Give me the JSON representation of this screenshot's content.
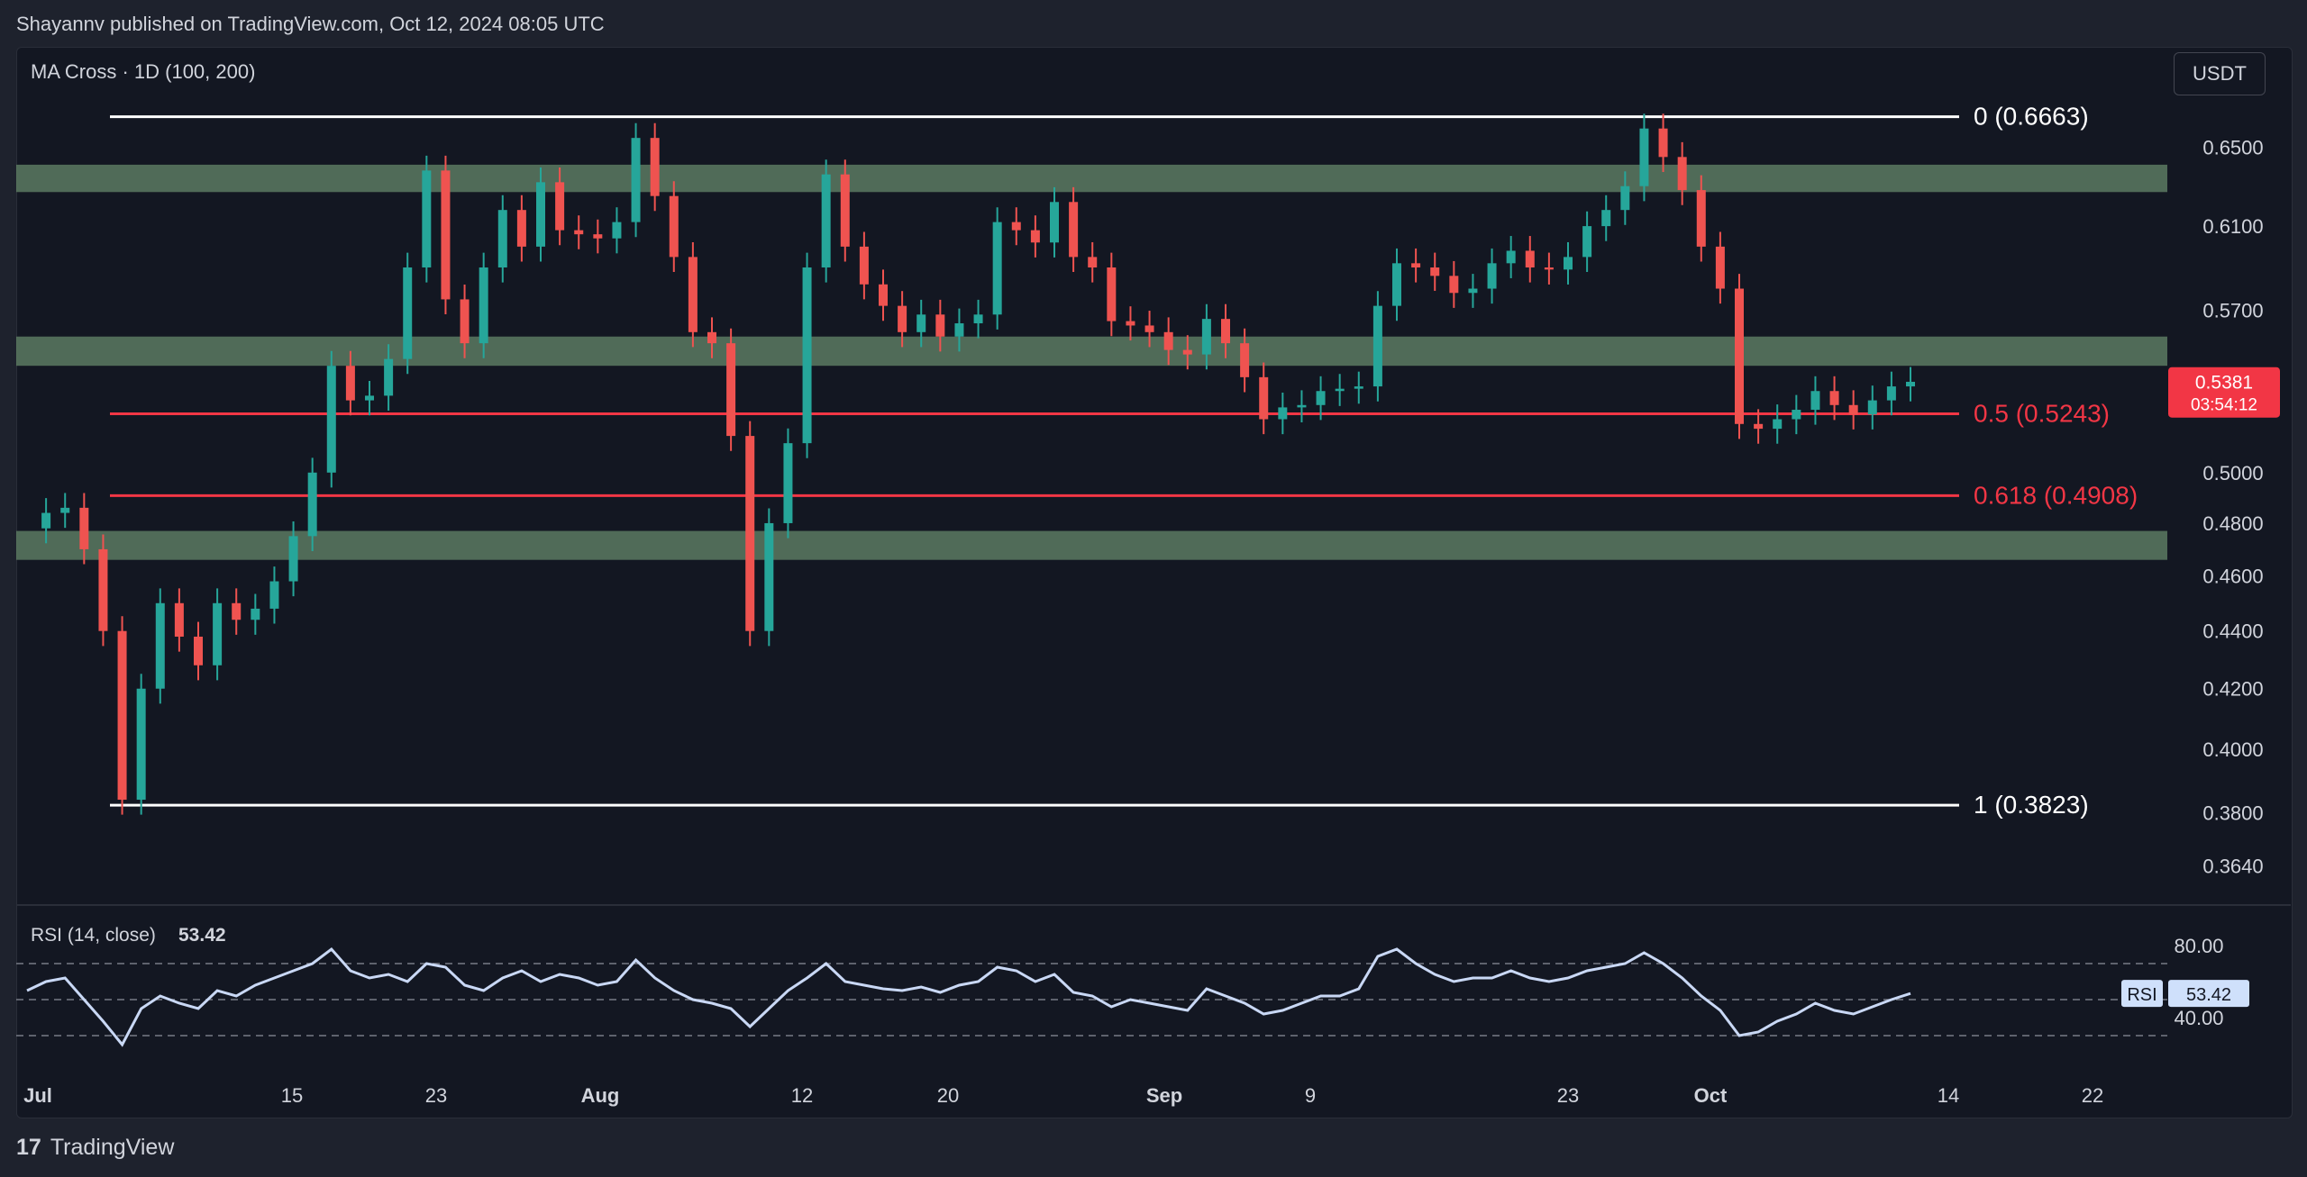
{
  "header": {
    "published": "Shayannv published on TradingView.com, Oct 12, 2024 08:05 UTC"
  },
  "footer": {
    "logo_mark": "17",
    "brand": "TradingView"
  },
  "toolbar": {
    "currency": "USDT"
  },
  "colors": {
    "up": "#26a69a",
    "down": "#ef5350",
    "zone": "#5c7a62",
    "fib_white": "#ffffff",
    "fib_red": "#f23645",
    "rsi_line": "#c9d8f5",
    "price_badge": "#f23645",
    "rsi_badge": "#cfe0fb"
  },
  "chart_data": {
    "type": "candlestick",
    "title": "MA Cross · 1D (100, 200)",
    "y_axis": {
      "range": [
        0.354,
        0.67
      ],
      "scale": "log",
      "ticks": [
        "0.6500",
        "0.6100",
        "0.5700",
        "0.5000",
        "0.4800",
        "0.4600",
        "0.4400",
        "0.4200",
        "0.4000",
        "0.3800",
        "0.3640"
      ]
    },
    "x_axis": {
      "ticks": [
        "Jul",
        "15",
        "23",
        "Aug",
        "12",
        "20",
        "Sep",
        "9",
        "23",
        "Oct",
        "14",
        "22"
      ]
    },
    "current_price": {
      "value": "0.5381",
      "countdown": "03:54:12"
    },
    "fib_levels": [
      {
        "label": "0 (0.6663)",
        "value": 0.6663,
        "color": "white"
      },
      {
        "label": "0.5 (0.5243)",
        "value": 0.5243,
        "color": "red"
      },
      {
        "label": "0.618 (0.4908)",
        "value": 0.4908,
        "color": "red"
      },
      {
        "label": "1 (0.3823)",
        "value": 0.3823,
        "color": "white"
      }
    ],
    "zones": [
      {
        "low": 0.627,
        "high": 0.641
      },
      {
        "low": 0.545,
        "high": 0.558
      },
      {
        "low": 0.466,
        "high": 0.477
      }
    ],
    "price_path": [
      [
        0.478,
        0.478
      ],
      [
        0.484,
        0.484
      ],
      [
        0.486,
        0.486
      ],
      [
        0.47,
        0.47
      ],
      [
        0.44,
        0.44
      ],
      [
        0.384,
        0.384
      ],
      [
        0.42,
        0.42
      ],
      [
        0.45,
        0.45
      ],
      [
        0.438,
        0.438
      ],
      [
        0.428,
        0.428
      ],
      [
        0.45,
        0.45
      ],
      [
        0.444,
        0.444
      ],
      [
        0.448,
        0.448
      ],
      [
        0.458,
        0.458
      ],
      [
        0.475,
        0.475
      ],
      [
        0.5,
        0.5
      ],
      [
        0.545,
        0.545
      ],
      [
        0.53,
        0.53
      ],
      [
        0.532,
        0.532
      ],
      [
        0.548,
        0.548
      ],
      [
        0.59,
        0.59
      ],
      [
        0.638,
        0.638
      ],
      [
        0.575,
        0.575
      ],
      [
        0.555,
        0.555
      ],
      [
        0.59,
        0.59
      ],
      [
        0.618,
        0.618
      ],
      [
        0.6,
        0.6
      ],
      [
        0.632,
        0.632
      ],
      [
        0.608,
        0.608
      ],
      [
        0.606,
        0.606
      ],
      [
        0.604,
        0.604
      ],
      [
        0.612,
        0.612
      ],
      [
        0.655,
        0.655
      ],
      [
        0.625,
        0.625
      ],
      [
        0.595,
        0.595
      ],
      [
        0.56,
        0.56
      ],
      [
        0.555,
        0.555
      ],
      [
        0.515,
        0.515
      ],
      [
        0.44,
        0.44
      ],
      [
        0.48,
        0.48
      ],
      [
        0.512,
        0.512
      ],
      [
        0.59,
        0.59
      ],
      [
        0.636,
        0.636
      ],
      [
        0.6,
        0.6
      ],
      [
        0.582,
        0.582
      ],
      [
        0.572,
        0.572
      ],
      [
        0.56,
        0.56
      ],
      [
        0.568,
        0.568
      ],
      [
        0.558,
        0.558
      ],
      [
        0.564,
        0.564
      ],
      [
        0.568,
        0.568
      ],
      [
        0.612,
        0.612
      ],
      [
        0.608,
        0.608
      ],
      [
        0.602,
        0.602
      ],
      [
        0.622,
        0.622
      ],
      [
        0.595,
        0.595
      ],
      [
        0.59,
        0.59
      ],
      [
        0.565,
        0.565
      ],
      [
        0.563,
        0.563
      ],
      [
        0.56,
        0.56
      ],
      [
        0.552,
        0.552
      ],
      [
        0.55,
        0.55
      ],
      [
        0.566,
        0.566
      ],
      [
        0.555,
        0.555
      ],
      [
        0.54,
        0.54
      ],
      [
        0.522,
        0.522
      ],
      [
        0.527,
        0.527
      ],
      [
        0.528,
        0.528
      ],
      [
        0.534,
        0.534
      ],
      [
        0.535,
        0.535
      ],
      [
        0.536,
        0.536
      ],
      [
        0.572,
        0.572
      ],
      [
        0.592,
        0.592
      ],
      [
        0.59,
        0.59
      ],
      [
        0.586,
        0.586
      ],
      [
        0.578,
        0.578
      ],
      [
        0.58,
        0.58
      ],
      [
        0.592,
        0.592
      ],
      [
        0.598,
        0.598
      ],
      [
        0.59,
        0.59
      ],
      [
        0.589,
        0.589
      ],
      [
        0.595,
        0.595
      ],
      [
        0.61,
        0.61
      ],
      [
        0.618,
        0.618
      ],
      [
        0.63,
        0.63
      ],
      [
        0.66,
        0.66
      ],
      [
        0.645,
        0.645
      ],
      [
        0.628,
        0.628
      ],
      [
        0.6,
        0.6
      ],
      [
        0.58,
        0.58
      ],
      [
        0.52,
        0.52
      ],
      [
        0.518,
        0.518
      ],
      [
        0.522,
        0.522
      ],
      [
        0.526,
        0.526
      ],
      [
        0.534,
        0.534
      ],
      [
        0.528,
        0.528
      ],
      [
        0.524,
        0.524
      ],
      [
        0.53,
        0.53
      ],
      [
        0.536,
        0.536
      ],
      [
        0.538,
        0.538
      ]
    ],
    "rsi": {
      "label": "RSI (14, close)",
      "value": "53.42",
      "ticks": [
        "80.00",
        "40.00"
      ],
      "badge_label": "RSI",
      "values": [
        55,
        60,
        62,
        50,
        38,
        25,
        45,
        52,
        48,
        45,
        55,
        52,
        58,
        62,
        66,
        70,
        78,
        66,
        62,
        64,
        60,
        70,
        68,
        58,
        55,
        62,
        66,
        60,
        64,
        62,
        58,
        60,
        72,
        62,
        55,
        50,
        48,
        45,
        35,
        45,
        55,
        62,
        70,
        60,
        58,
        56,
        55,
        57,
        54,
        58,
        60,
        68,
        66,
        60,
        64,
        54,
        52,
        46,
        50,
        48,
        46,
        44,
        56,
        52,
        48,
        42,
        44,
        48,
        52,
        52,
        56,
        74,
        78,
        70,
        64,
        60,
        62,
        62,
        66,
        62,
        60,
        62,
        66,
        68,
        70,
        76,
        70,
        62,
        52,
        44,
        30,
        32,
        38,
        42,
        48,
        44,
        42,
        46,
        50,
        53.42
      ]
    }
  }
}
